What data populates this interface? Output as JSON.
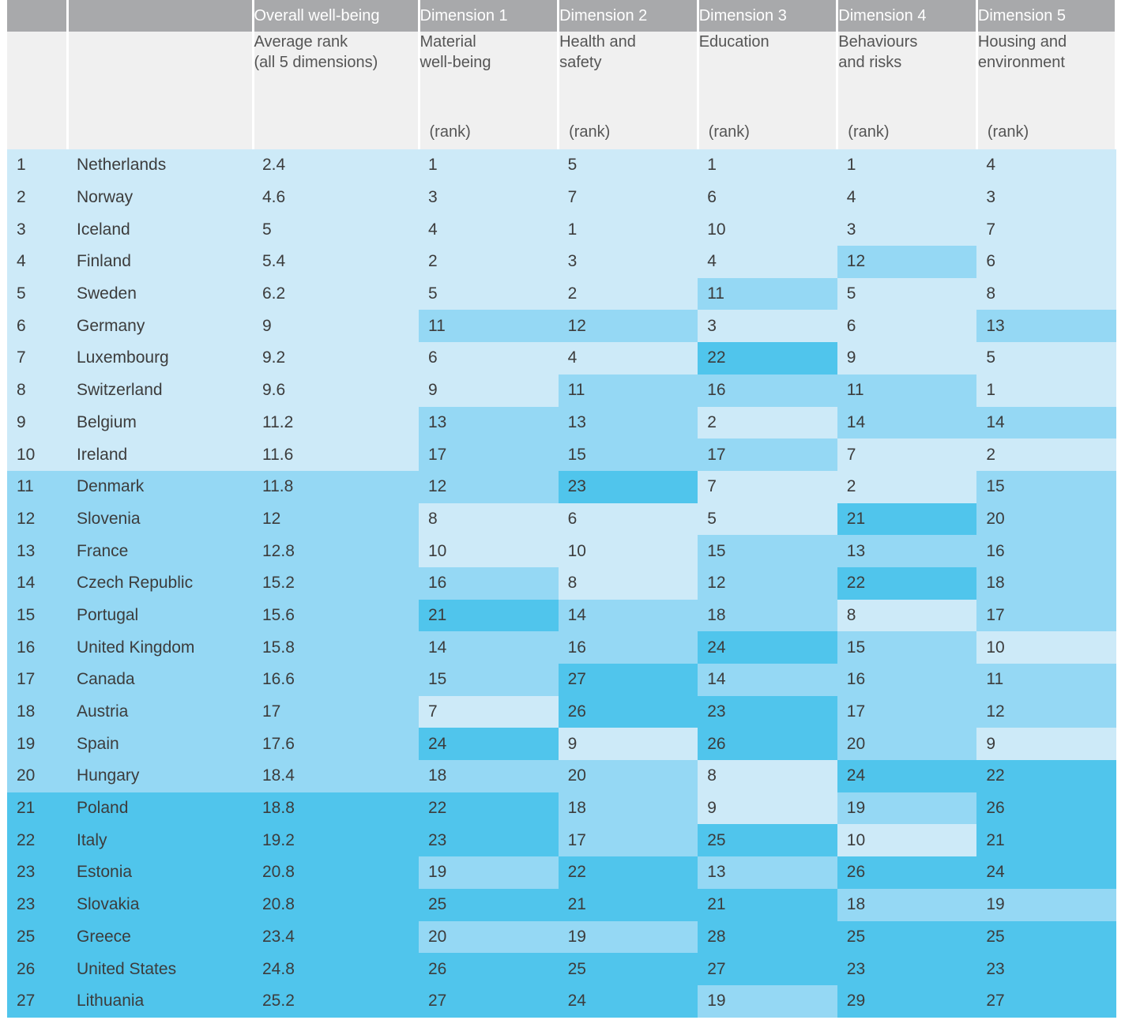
{
  "chart_data": {
    "type": "table",
    "header_top": [
      "",
      "",
      "Overall well-being",
      "Dimension 1",
      "Dimension 2",
      "Dimension 3",
      "Dimension 4",
      "Dimension 5"
    ],
    "header_desc": [
      "",
      "",
      "Average rank\n(all 5 dimensions)",
      "Material\nwell-being",
      "Health and\nsafety",
      "Education",
      "Behaviours\nand risks",
      "Housing and\nenvironment"
    ],
    "header_unit": [
      "",
      "",
      "",
      "(rank)",
      "(rank)",
      "(rank)",
      "(rank)",
      "(rank)"
    ],
    "shade_thresholds": {
      "light_max": 10,
      "mid_max": 20
    },
    "colors": {
      "header_bg": "#a8a9ab",
      "subheader_bg": "#f0f0f0",
      "light": "#cdeaf8",
      "mid": "#95d8f4",
      "dark": "#50c5ec"
    },
    "rows": [
      {
        "rank": "1",
        "country": "Netherlands",
        "avg": "2.4",
        "d": [
          "1",
          "5",
          "1",
          "1",
          "4"
        ]
      },
      {
        "rank": "2",
        "country": "Norway",
        "avg": "4.6",
        "d": [
          "3",
          "7",
          "6",
          "4",
          "3"
        ]
      },
      {
        "rank": "3",
        "country": "Iceland",
        "avg": "5",
        "d": [
          "4",
          "1",
          "10",
          "3",
          "7"
        ]
      },
      {
        "rank": "4",
        "country": "Finland",
        "avg": "5.4",
        "d": [
          "2",
          "3",
          "4",
          "12",
          "6"
        ]
      },
      {
        "rank": "5",
        "country": "Sweden",
        "avg": "6.2",
        "d": [
          "5",
          "2",
          "11",
          "5",
          "8"
        ]
      },
      {
        "rank": "6",
        "country": "Germany",
        "avg": "9",
        "d": [
          "11",
          "12",
          "3",
          "6",
          "13"
        ]
      },
      {
        "rank": "7",
        "country": "Luxembourg",
        "avg": "9.2",
        "d": [
          "6",
          "4",
          "22",
          "9",
          "5"
        ]
      },
      {
        "rank": "8",
        "country": "Switzerland",
        "avg": "9.6",
        "d": [
          "9",
          "11",
          "16",
          "11",
          "1"
        ]
      },
      {
        "rank": "9",
        "country": "Belgium",
        "avg": "11.2",
        "d": [
          "13",
          "13",
          "2",
          "14",
          "14"
        ]
      },
      {
        "rank": "10",
        "country": "Ireland",
        "avg": "11.6",
        "d": [
          "17",
          "15",
          "17",
          "7",
          "2"
        ]
      },
      {
        "rank": "11",
        "country": "Denmark",
        "avg": "11.8",
        "d": [
          "12",
          "23",
          "7",
          "2",
          "15"
        ]
      },
      {
        "rank": "12",
        "country": "Slovenia",
        "avg": "12",
        "d": [
          "8",
          "6",
          "5",
          "21",
          "20"
        ]
      },
      {
        "rank": "13",
        "country": "France",
        "avg": "12.8",
        "d": [
          "10",
          "10",
          "15",
          "13",
          "16"
        ]
      },
      {
        "rank": "14",
        "country": "Czech Republic",
        "avg": "15.2",
        "d": [
          "16",
          "8",
          "12",
          "22",
          "18"
        ]
      },
      {
        "rank": "15",
        "country": "Portugal",
        "avg": "15.6",
        "d": [
          "21",
          "14",
          "18",
          "8",
          "17"
        ]
      },
      {
        "rank": "16",
        "country": "United Kingdom",
        "avg": "15.8",
        "d": [
          "14",
          "16",
          "24",
          "15",
          "10"
        ]
      },
      {
        "rank": "17",
        "country": "Canada",
        "avg": "16.6",
        "d": [
          "15",
          "27",
          "14",
          "16",
          "11"
        ]
      },
      {
        "rank": "18",
        "country": "Austria",
        "avg": "17",
        "d": [
          "7",
          "26",
          "23",
          "17",
          "12"
        ]
      },
      {
        "rank": "19",
        "country": "Spain",
        "avg": "17.6",
        "d": [
          "24",
          "9",
          "26",
          "20",
          "9"
        ]
      },
      {
        "rank": "20",
        "country": "Hungary",
        "avg": "18.4",
        "d": [
          "18",
          "20",
          "8",
          "24",
          "22"
        ]
      },
      {
        "rank": "21",
        "country": "Poland",
        "avg": "18.8",
        "d": [
          "22",
          "18",
          "9",
          "19",
          "26"
        ]
      },
      {
        "rank": "22",
        "country": "Italy",
        "avg": "19.2",
        "d": [
          "23",
          "17",
          "25",
          "10",
          "21"
        ]
      },
      {
        "rank": "23",
        "country": "Estonia",
        "avg": "20.8",
        "d": [
          "19",
          "22",
          "13",
          "26",
          "24"
        ]
      },
      {
        "rank": "23",
        "country": "Slovakia",
        "avg": "20.8",
        "d": [
          "25",
          "21",
          "21",
          "18",
          "19"
        ]
      },
      {
        "rank": "25",
        "country": "Greece",
        "avg": "23.4",
        "d": [
          "20",
          "19",
          "28",
          "25",
          "25"
        ]
      },
      {
        "rank": "26",
        "country": "United States",
        "avg": "24.8",
        "d": [
          "26",
          "25",
          "27",
          "23",
          "23"
        ]
      },
      {
        "rank": "27",
        "country": "Lithuania",
        "avg": "25.2",
        "d": [
          "27",
          "24",
          "19",
          "29",
          "27"
        ]
      }
    ]
  }
}
